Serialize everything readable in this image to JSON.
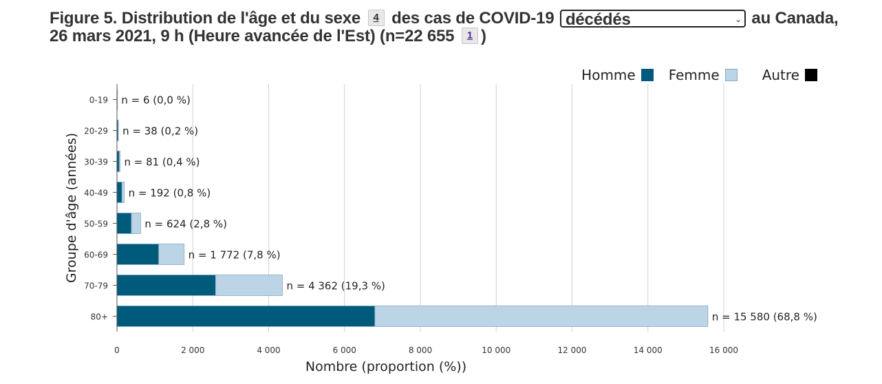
{
  "title": {
    "part1": "Figure 5. Distribution de l'âge et du sexe",
    "footnote1": "4",
    "part2": "des cas de COVID-19",
    "dropdown_value": "décédés",
    "part3": "au Canada, 26 mars 2021, 9 h (Heure avancée de l'Est) (n=22 655",
    "footnote2": "1",
    "part4": ")"
  },
  "legend": [
    {
      "label": "Homme",
      "color": "#005a7c"
    },
    {
      "label": "Femme",
      "color": "#bcd5e6"
    },
    {
      "label": "Autre",
      "color": "#000000"
    }
  ],
  "chart_data": {
    "type": "bar",
    "orientation": "horizontal",
    "stacked": true,
    "ylabel": "Groupe d'âge (années)",
    "xlabel": "Nombre (proportion (%))",
    "xlim": [
      0,
      16000
    ],
    "xticks": [
      0,
      2000,
      4000,
      6000,
      8000,
      10000,
      12000,
      14000,
      16000
    ],
    "xtick_labels": [
      "0",
      "2 000",
      "4 000",
      "6 000",
      "8 000",
      "10 000",
      "12 000",
      "14 000",
      "16 000"
    ],
    "grid": true,
    "legend_position": "top-right",
    "categories": [
      "0-19",
      "20-29",
      "30-39",
      "40-49",
      "50-59",
      "60-69",
      "70-79",
      "80+"
    ],
    "series": [
      {
        "name": "Homme",
        "color": "#005a7c",
        "values": [
          4,
          30,
          60,
          130,
          380,
          1100,
          2600,
          6800
        ]
      },
      {
        "name": "Femme",
        "color": "#bcd5e6",
        "values": [
          2,
          8,
          21,
          62,
          244,
          672,
          1762,
          8780
        ]
      },
      {
        "name": "Autre",
        "color": "#000000",
        "values": [
          0,
          0,
          0,
          0,
          0,
          0,
          0,
          0
        ]
      }
    ],
    "totals": [
      6,
      38,
      81,
      192,
      624,
      1772,
      4362,
      15580
    ],
    "data_labels": [
      "n = 6 (0,0 %)",
      "n = 38 (0,2 %)",
      "n = 81 (0,4 %)",
      "n = 192 (0,8 %)",
      "n = 624 (2,8 %)",
      "n = 1 772 (7,8 %)",
      "n = 4 362 (19,3 %)",
      "n = 15 580 (68,8 %)"
    ]
  }
}
